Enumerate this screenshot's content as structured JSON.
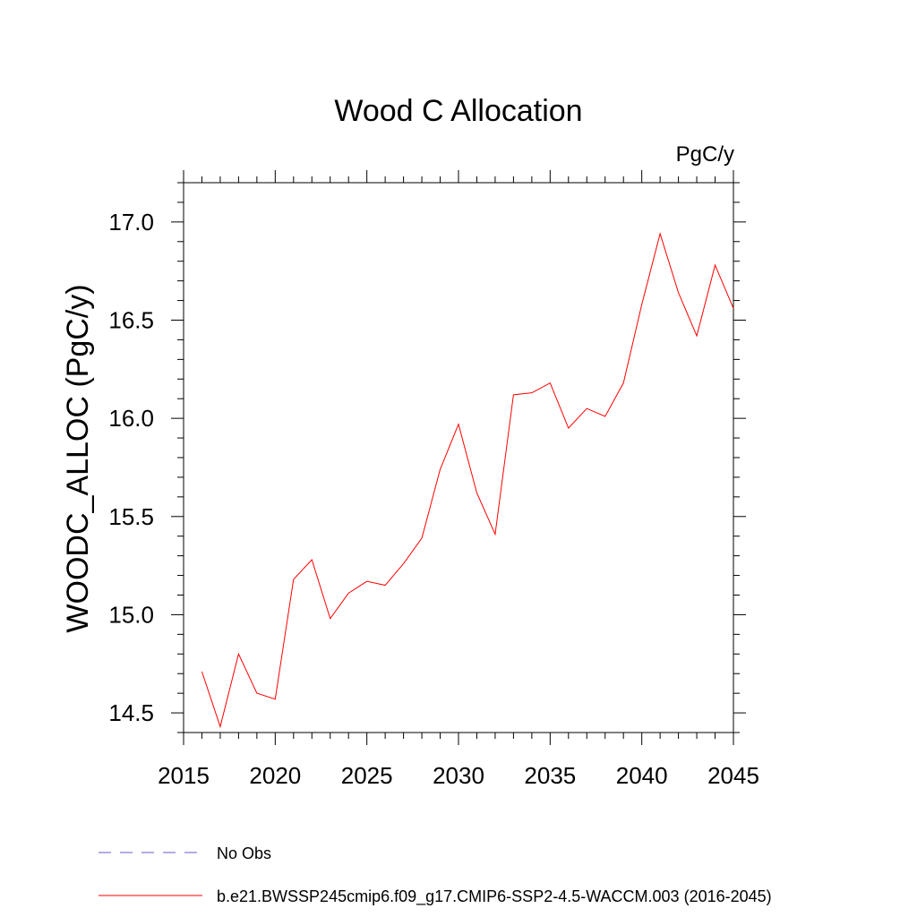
{
  "chart_data": {
    "type": "line",
    "title": "Wood C Allocation",
    "units_label": "PgC/y",
    "xlabel": "",
    "ylabel": "WOODC_ALLOC  (PgC/y)",
    "xlim": [
      2015,
      2045
    ],
    "ylim": [
      14.4,
      17.2
    ],
    "x_ticks": [
      2015,
      2020,
      2025,
      2030,
      2035,
      2040,
      2045
    ],
    "x_tick_labels": [
      "2015",
      "2020",
      "2025",
      "2030",
      "2035",
      "2040",
      "2045"
    ],
    "y_ticks": [
      14.5,
      15.0,
      15.5,
      16.0,
      16.5,
      17.0
    ],
    "y_tick_labels": [
      "14.5",
      "15.0",
      "15.5",
      "16.0",
      "16.5",
      "17.0"
    ],
    "grid": false,
    "legend_position": "bottom",
    "series": [
      {
        "name": "b.e21.BWSSP245cmip6.f09_g17.CMIP6-SSP2-4.5-WACCM.003 (2016-2045)",
        "color": "#ff0000",
        "style": "solid",
        "x": [
          2016,
          2017,
          2018,
          2019,
          2020,
          2021,
          2022,
          2023,
          2024,
          2025,
          2026,
          2027,
          2028,
          2029,
          2030,
          2031,
          2032,
          2033,
          2034,
          2035,
          2036,
          2037,
          2038,
          2039,
          2040,
          2041,
          2042,
          2043,
          2044,
          2045
        ],
        "y": [
          14.71,
          14.43,
          14.8,
          14.6,
          14.57,
          15.18,
          15.28,
          14.98,
          15.11,
          15.17,
          15.15,
          15.26,
          15.39,
          15.74,
          15.97,
          15.62,
          15.41,
          16.12,
          16.13,
          16.18,
          15.95,
          16.05,
          16.01,
          16.18,
          16.58,
          16.94,
          16.64,
          16.42,
          16.78,
          16.56
        ]
      },
      {
        "name": "No Obs",
        "color": "#6a5acd",
        "style": "dashed",
        "x": [],
        "y": []
      }
    ]
  }
}
